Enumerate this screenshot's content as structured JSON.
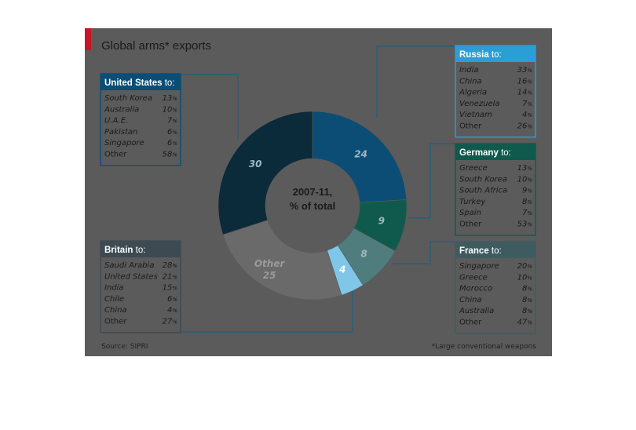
{
  "title": "Global arms* exports",
  "center_label": {
    "line1": "2007-11,",
    "line2": "% of total"
  },
  "source": "Source: SIPRI",
  "footnote": "*Large conventional weapons",
  "colors": {
    "us": "#0c4d75",
    "russia": "#2a9fd6",
    "germany": "#0f5a4c",
    "france": "#5f8c8c",
    "britain": "#5c6f7a",
    "other": "#6a6a6a",
    "background": "#5b5b5b",
    "flag": "#c7152a"
  },
  "chart_data": {
    "type": "pie",
    "variant": "donut",
    "title": "Global arms* exports",
    "subtitle": "2007-11, % of total",
    "slices": [
      {
        "name": "Russia",
        "value": 24,
        "label": "24"
      },
      {
        "name": "Germany",
        "value": 9,
        "label": "9"
      },
      {
        "name": "France",
        "value": 8,
        "label": "8"
      },
      {
        "name": "Britain",
        "value": 4,
        "label": "4"
      },
      {
        "name": "Other",
        "value": 25,
        "label": "25",
        "text": "Other"
      },
      {
        "name": "United States",
        "value": 30,
        "label": "30"
      }
    ],
    "panels": [
      {
        "key": "us",
        "country": "United States",
        "suffix": "to:",
        "rows": [
          {
            "dest": "South Korea",
            "pct": "13"
          },
          {
            "dest": "Australia",
            "pct": "10"
          },
          {
            "dest": "U.A.E.",
            "pct": "7"
          },
          {
            "dest": "Pakistan",
            "pct": "6"
          },
          {
            "dest": "Singapore",
            "pct": "6"
          },
          {
            "dest": "Other",
            "pct": "58"
          }
        ]
      },
      {
        "key": "russia",
        "country": "Russia",
        "suffix": "to:",
        "rows": [
          {
            "dest": "India",
            "pct": "33"
          },
          {
            "dest": "China",
            "pct": "16"
          },
          {
            "dest": "Algeria",
            "pct": "14"
          },
          {
            "dest": "Venezuela",
            "pct": "7"
          },
          {
            "dest": "Vietnam",
            "pct": "4"
          },
          {
            "dest": "Other",
            "pct": "26"
          }
        ]
      },
      {
        "key": "germany",
        "country": "Germany",
        "suffix": "to:",
        "rows": [
          {
            "dest": "Greece",
            "pct": "13"
          },
          {
            "dest": "South Korea",
            "pct": "10"
          },
          {
            "dest": "South Africa",
            "pct": "9"
          },
          {
            "dest": "Turkey",
            "pct": "8"
          },
          {
            "dest": "Spain",
            "pct": "7"
          },
          {
            "dest": "Other",
            "pct": "53"
          }
        ]
      },
      {
        "key": "britain",
        "country": "Britain",
        "suffix": "to:",
        "rows": [
          {
            "dest": "Saudi Arabia",
            "pct": "28"
          },
          {
            "dest": "United States",
            "pct": "21"
          },
          {
            "dest": "India",
            "pct": "15"
          },
          {
            "dest": "Chile",
            "pct": "6"
          },
          {
            "dest": "China",
            "pct": "4"
          },
          {
            "dest": "Other",
            "pct": "27"
          }
        ]
      },
      {
        "key": "france",
        "country": "France",
        "suffix": "to:",
        "rows": [
          {
            "dest": "Singapore",
            "pct": "20"
          },
          {
            "dest": "Greece",
            "pct": "10"
          },
          {
            "dest": "Morocco",
            "pct": "8"
          },
          {
            "dest": "China",
            "pct": "8"
          },
          {
            "dest": "Australia",
            "pct": "8"
          },
          {
            "dest": "Other",
            "pct": "47"
          }
        ]
      }
    ]
  }
}
